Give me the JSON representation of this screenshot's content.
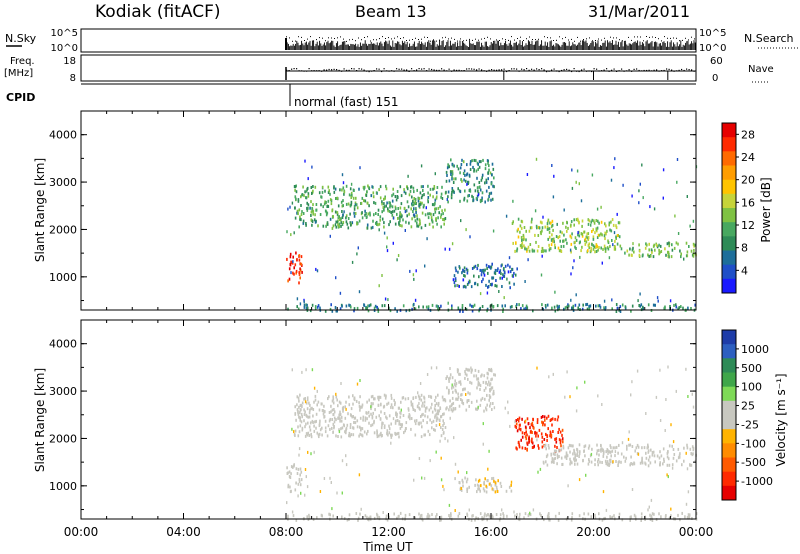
{
  "header": {
    "station": "Kodiak (fitACF)",
    "beam": "Beam 13",
    "date": "31/Mar/2011"
  },
  "panels": {
    "nsky": {
      "left_label": "N.Sky",
      "right_label": "N.Search",
      "ticks_left": [
        "10^5",
        "10^0"
      ],
      "ticks_right": [
        "10^5",
        "10^0"
      ]
    },
    "freq": {
      "left_label_1": "Freq.",
      "left_label_2": "[MHz]",
      "ticks_left": [
        "18",
        "8"
      ],
      "right_label": "Nave",
      "ticks_right": [
        "60",
        "0"
      ]
    },
    "cpid": {
      "label": "CPID",
      "mode": "normal (fast) 151"
    }
  },
  "chart_data": [
    {
      "type": "heatmap",
      "title": "",
      "xlabel": "",
      "ylabel": "Slant Range [km]",
      "xlim": [
        0,
        24
      ],
      "ylim": [
        300,
        4500
      ],
      "yticks": [
        1000,
        2000,
        3000,
        4000
      ],
      "colorbar": {
        "label": "Power [dB]",
        "ticks": [
          4,
          8,
          12,
          16,
          20,
          24,
          28
        ],
        "range": [
          0,
          30
        ],
        "colors": [
          "#1a1aff",
          "#1f4fc8",
          "#1d6e9a",
          "#2e8b57",
          "#48a860",
          "#7fc243",
          "#c6d43a",
          "#ffc400",
          "#ff9d00",
          "#ff6a00",
          "#ff2a00",
          "#e60000"
        ]
      },
      "bands": [
        {
          "t_start": 8.0,
          "t_end": 8.6,
          "range_start": 900,
          "range_end": 1600,
          "value": 27
        },
        {
          "t_start": 8.3,
          "t_end": 14.2,
          "range_start": 2050,
          "range_end": 2950,
          "value": 11
        },
        {
          "t_start": 14.2,
          "t_end": 16.1,
          "range_start": 2600,
          "range_end": 3500,
          "value": 9
        },
        {
          "t_start": 16.8,
          "t_end": 21.0,
          "range_start": 1550,
          "range_end": 2250,
          "value": 14
        },
        {
          "t_start": 21.0,
          "t_end": 24.0,
          "range_start": 1450,
          "range_end": 1750,
          "value": 13
        },
        {
          "t_start": 14.5,
          "t_end": 17.0,
          "range_start": 800,
          "range_end": 1300,
          "value": 6
        },
        {
          "t_start": 8.0,
          "t_end": 24.0,
          "range_start": 300,
          "range_end": 450,
          "value": 8
        }
      ]
    },
    {
      "type": "heatmap",
      "title": "",
      "xlabel": "Time UT",
      "ylabel": "Slant Range [km]",
      "xlim": [
        0,
        24
      ],
      "ylim": [
        300,
        4500
      ],
      "xticks": [
        "00:00",
        "04:00",
        "08:00",
        "12:00",
        "16:00",
        "20:00",
        "00:00"
      ],
      "yticks": [
        1000,
        2000,
        3000,
        4000
      ],
      "colorbar": {
        "label": "Velocity [m s⁻¹]",
        "ticks": [
          1000,
          500,
          100,
          25,
          -25,
          -100,
          -500,
          -1000
        ],
        "range": [
          -1200,
          1200
        ],
        "colors": [
          "#1e3ca8",
          "#2d5fc0",
          "#2e8b57",
          "#3fa64a",
          "#7ed957",
          "#c8c8c0",
          "#c8c8c0",
          "#ffb300",
          "#ff8c00",
          "#ff5a00",
          "#ff2a00",
          "#e60000"
        ]
      },
      "bands": [
        {
          "t_start": 8.0,
          "t_end": 8.6,
          "range_start": 900,
          "range_end": 1500,
          "value": 60
        },
        {
          "t_start": 8.3,
          "t_end": 14.2,
          "range_start": 2050,
          "range_end": 2950,
          "value": 0
        },
        {
          "t_start": 14.2,
          "t_end": 16.1,
          "range_start": 2600,
          "range_end": 3500,
          "value": 0
        },
        {
          "t_start": 16.9,
          "t_end": 18.8,
          "range_start": 1750,
          "range_end": 2500,
          "value": -900
        },
        {
          "t_start": 18.0,
          "t_end": 24.0,
          "range_start": 1450,
          "range_end": 1900,
          "value": 0
        },
        {
          "t_start": 14.5,
          "t_end": 16.8,
          "range_start": 900,
          "range_end": 1200,
          "value": -150
        },
        {
          "t_start": 8.0,
          "t_end": 24.0,
          "range_start": 300,
          "range_end": 450,
          "value": 0
        }
      ]
    }
  ]
}
